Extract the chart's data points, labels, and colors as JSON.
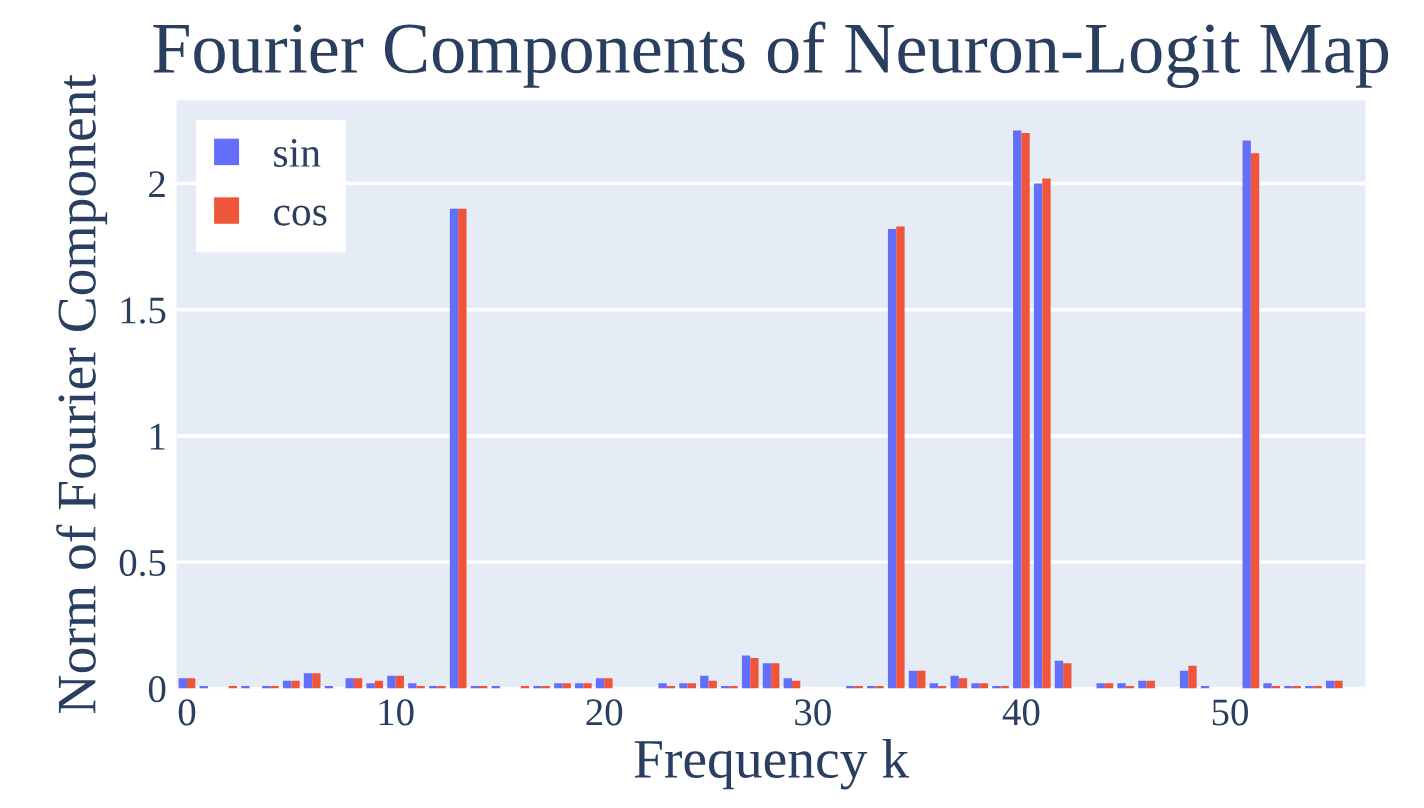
{
  "chart_data": {
    "type": "bar",
    "title": "Fourier Components of Neuron-Logit Map",
    "xlabel": "Frequency k",
    "ylabel": "Norm of Fourier Component",
    "x": [
      0,
      1,
      2,
      3,
      4,
      5,
      6,
      7,
      8,
      9,
      10,
      11,
      12,
      13,
      14,
      15,
      16,
      17,
      18,
      19,
      20,
      21,
      22,
      23,
      24,
      25,
      26,
      27,
      28,
      29,
      30,
      31,
      32,
      33,
      34,
      35,
      36,
      37,
      38,
      39,
      40,
      41,
      42,
      43,
      44,
      45,
      46,
      47,
      48,
      49,
      50,
      51,
      52,
      53,
      54,
      55,
      56
    ],
    "series": [
      {
        "name": "sin",
        "color": "#636efa",
        "values": [
          0.04,
          0.01,
          0.0,
          0.01,
          0.01,
          0.03,
          0.06,
          0.01,
          0.04,
          0.02,
          0.05,
          0.02,
          0.01,
          1.9,
          0.01,
          0.01,
          0.0,
          0.01,
          0.02,
          0.02,
          0.04,
          0.0,
          0.0,
          0.02,
          0.02,
          0.05,
          0.01,
          0.13,
          0.1,
          0.04,
          0.0,
          0.0,
          0.01,
          0.01,
          1.82,
          0.07,
          0.02,
          0.05,
          0.02,
          0.01,
          2.21,
          2.0,
          0.11,
          0.0,
          0.02,
          0.02,
          0.03,
          0.0,
          0.07,
          0.01,
          0.0,
          2.17,
          0.02,
          0.01,
          0.01,
          0.03,
          0.0
        ]
      },
      {
        "name": "cos",
        "color": "#ef553b",
        "values": [
          0.04,
          0.0,
          0.01,
          0.0,
          0.01,
          0.03,
          0.06,
          0.0,
          0.04,
          0.03,
          0.05,
          0.01,
          0.01,
          1.9,
          0.01,
          0.0,
          0.01,
          0.01,
          0.02,
          0.02,
          0.04,
          0.0,
          0.0,
          0.01,
          0.02,
          0.03,
          0.01,
          0.12,
          0.1,
          0.03,
          0.0,
          0.0,
          0.01,
          0.01,
          1.83,
          0.07,
          0.01,
          0.04,
          0.02,
          0.01,
          2.2,
          2.02,
          0.1,
          0.0,
          0.02,
          0.01,
          0.03,
          0.0,
          0.09,
          0.0,
          0.0,
          2.12,
          0.01,
          0.01,
          0.01,
          0.03,
          0.0
        ]
      }
    ],
    "xlim": [
      -0.5,
      56.5
    ],
    "xticks": [
      0,
      10,
      20,
      30,
      40,
      50
    ],
    "ylim": [
      0,
      2.33
    ],
    "yticks": [
      0,
      0.5,
      1,
      1.5,
      2
    ],
    "grid": true,
    "legend": "top left"
  }
}
